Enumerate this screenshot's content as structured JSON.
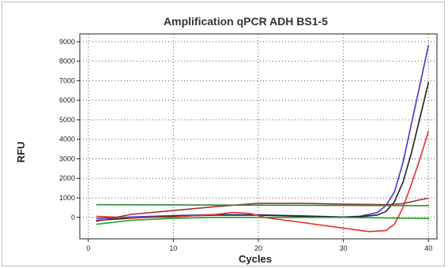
{
  "chart_data": {
    "type": "line",
    "title": "Amplification qPCR ADH BS1-5",
    "xlabel": "Cycles",
    "ylabel": "RFU",
    "xlim": [
      -1,
      41
    ],
    "ylim": [
      -1100,
      9400
    ],
    "x_ticks": [
      0,
      10,
      20,
      30,
      40
    ],
    "y_ticks": [
      0,
      1000,
      2000,
      3000,
      4000,
      5000,
      6000,
      7000,
      8000,
      9000
    ],
    "grid": true,
    "series": [
      {
        "color": "#3a3ad0",
        "x": [
          1,
          5,
          10,
          15,
          20,
          25,
          30,
          32,
          34,
          35,
          36,
          37,
          38,
          39,
          40
        ],
        "y": [
          -50,
          20,
          90,
          140,
          130,
          80,
          20,
          60,
          250,
          600,
          1300,
          2800,
          4800,
          6800,
          8800
        ]
      },
      {
        "color": "#222222",
        "x": [
          1,
          5,
          10,
          15,
          20,
          25,
          30,
          32,
          34,
          35,
          36,
          37,
          38,
          39,
          40
        ],
        "y": [
          -150,
          -40,
          60,
          110,
          110,
          60,
          10,
          40,
          120,
          300,
          800,
          1800,
          3300,
          5100,
          6900
        ]
      },
      {
        "color": "#e53030",
        "x": [
          1,
          5,
          10,
          15,
          17,
          19,
          21,
          25,
          30,
          33,
          35,
          36,
          37,
          38,
          39,
          40
        ],
        "y": [
          50,
          -20,
          20,
          150,
          250,
          200,
          -20,
          -250,
          -550,
          -730,
          -680,
          -350,
          500,
          1700,
          3000,
          4400
        ]
      },
      {
        "color": "#993333",
        "x": [
          1,
          5,
          10,
          15,
          20,
          25,
          30,
          35,
          37,
          38,
          39,
          40
        ],
        "y": [
          -200,
          150,
          350,
          550,
          720,
          720,
          680,
          650,
          700,
          800,
          900,
          980
        ]
      },
      {
        "color": "#1e9e1e",
        "x": [
          1,
          5,
          10,
          15,
          20,
          25,
          30,
          35,
          40
        ],
        "y": [
          -350,
          -150,
          -50,
          0,
          0,
          0,
          0,
          -30,
          -60
        ]
      },
      {
        "color": "#2e8b2e",
        "x": [
          1,
          40
        ],
        "y": [
          650,
          600
        ]
      }
    ]
  }
}
